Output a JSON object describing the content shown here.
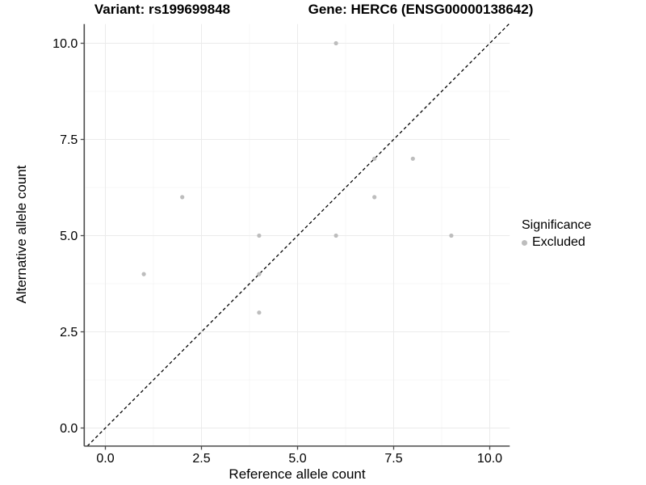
{
  "chart_data": {
    "type": "scatter",
    "title_left": "Variant: rs199699848",
    "title_right": "Gene: HERC6 (ENSG00000138642)",
    "xlabel": "Reference allele count",
    "ylabel": "Alternative allele count",
    "xlim": [
      -0.55,
      10.52
    ],
    "ylim": [
      -0.47,
      10.5
    ],
    "x_ticks": [
      0,
      2.5,
      5,
      7.5,
      10
    ],
    "x_tick_labels": [
      "0.0",
      "2.5",
      "5.0",
      "7.5",
      "10.0"
    ],
    "y_ticks": [
      0,
      2.5,
      5,
      7.5,
      10
    ],
    "y_tick_labels": [
      "0.0",
      "2.5",
      "5.0",
      "7.5",
      "10.0"
    ],
    "x_minor_ticks": [
      1.25,
      3.75,
      6.25,
      8.75
    ],
    "y_minor_ticks": [
      1.25,
      3.75,
      6.25,
      8.75
    ],
    "grid": "major+minor",
    "points": [
      {
        "x": 6,
        "y": 10
      },
      {
        "x": 2,
        "y": 6
      },
      {
        "x": 7,
        "y": 7
      },
      {
        "x": 8,
        "y": 7
      },
      {
        "x": 7,
        "y": 6
      },
      {
        "x": 4,
        "y": 5
      },
      {
        "x": 6,
        "y": 5
      },
      {
        "x": 9,
        "y": 5
      },
      {
        "x": 1,
        "y": 4
      },
      {
        "x": 4,
        "y": 4
      },
      {
        "x": 4,
        "y": 3
      }
    ],
    "identity_line": {
      "style": "dashed",
      "slope": 1,
      "intercept": 0,
      "color": "#000000"
    },
    "colors": {
      "point": "#bdbdbd",
      "grid_major": "#ebebeb",
      "grid_minor": "#f5f5f5",
      "axis": "#4a4a4a",
      "tick_text": "#000000",
      "background": "#ffffff"
    },
    "legend": {
      "title": "Significance",
      "position": "right",
      "items": [
        {
          "label": "Excluded",
          "color": "#bdbdbd"
        }
      ]
    }
  }
}
